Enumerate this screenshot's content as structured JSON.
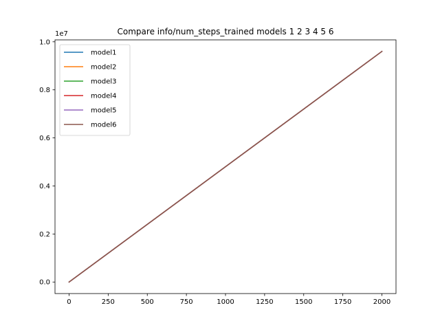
{
  "chart_data": {
    "type": "line",
    "title": "Compare info/num_steps_trained models 1 2 3 4 5 6",
    "xlabel": "",
    "ylabel": "",
    "y_offset_label": "1e7",
    "xlim": [
      -90,
      2090
    ],
    "ylim": [
      -0.048,
      1.008
    ],
    "x_ticks": [
      0,
      250,
      500,
      750,
      1000,
      1250,
      1500,
      1750,
      2000
    ],
    "x_tick_labels": [
      "0",
      "250",
      "500",
      "750",
      "1000",
      "1250",
      "1500",
      "1750",
      "2000"
    ],
    "y_ticks": [
      0.0,
      0.2,
      0.4,
      0.6,
      0.8,
      1.0
    ],
    "y_tick_labels": [
      "0.0",
      "0.2",
      "0.4",
      "0.6",
      "0.8",
      "1.0"
    ],
    "grid": false,
    "legend_position": "top-left",
    "x": [
      0,
      2000
    ],
    "series": [
      {
        "name": "model1",
        "color": "#1f77b4",
        "values": [
          0.0,
          0.96
        ]
      },
      {
        "name": "model2",
        "color": "#ff7f0e",
        "values": [
          0.0,
          0.96
        ]
      },
      {
        "name": "model3",
        "color": "#2ca02c",
        "values": [
          0.0,
          0.96
        ]
      },
      {
        "name": "model4",
        "color": "#d62728",
        "values": [
          0.0,
          0.96
        ]
      },
      {
        "name": "model5",
        "color": "#9467bd",
        "values": [
          0.0,
          0.96
        ]
      },
      {
        "name": "model6",
        "color": "#8c564b",
        "values": [
          0.0,
          0.96
        ]
      }
    ]
  }
}
